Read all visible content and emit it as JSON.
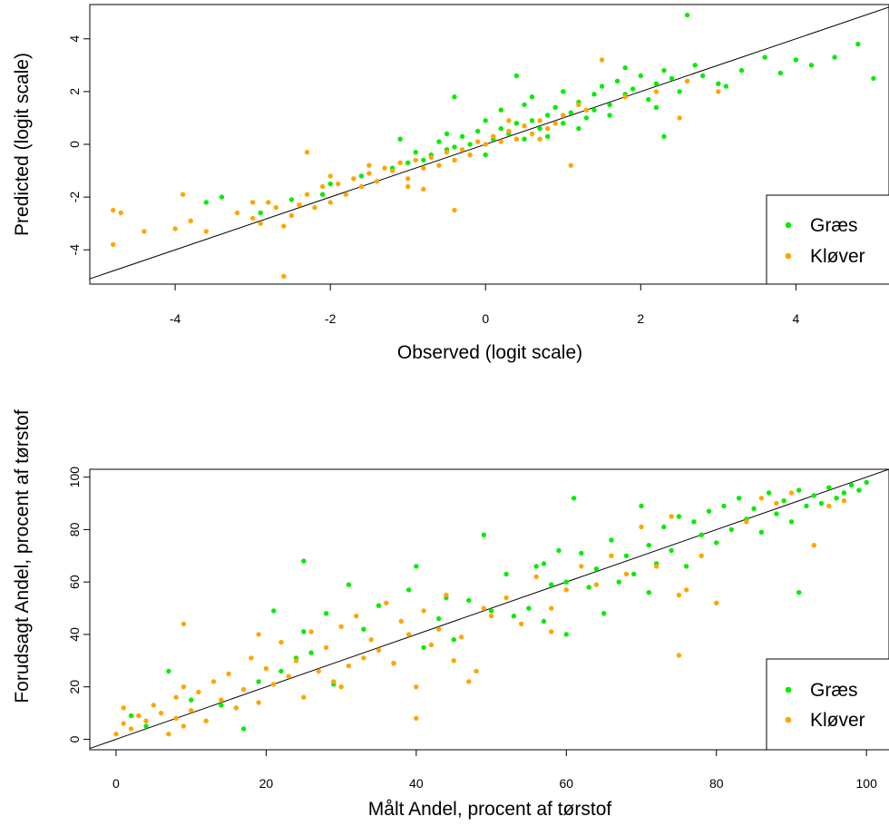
{
  "chart_data": [
    {
      "type": "scatter",
      "xlabel": "Observed (logit scale)",
      "ylabel": "Predicted (logit scale)",
      "xlim": [
        -5.1,
        5.2
      ],
      "ylim": [
        -5.3,
        5.3
      ],
      "xticks": [
        -4,
        -2,
        0,
        2,
        4
      ],
      "yticks": [
        -4,
        -2,
        0,
        2,
        4
      ],
      "xtick_labels": [
        "-4",
        "-2",
        "0",
        "2",
        "4"
      ],
      "ytick_labels": [
        "-4",
        "-2",
        "0",
        "2",
        "4"
      ],
      "reference_line": "y = x",
      "legend": {
        "position": "bottom-right",
        "entries": [
          "Græs",
          "Kløver"
        ]
      },
      "grid": false,
      "series": [
        {
          "name": "Græs",
          "color": "#00ee00",
          "x": [
            -3.6,
            -3.4,
            -2.9,
            -2.5,
            -2.1,
            -2.0,
            -1.6,
            -1.2,
            -1.1,
            -1.0,
            -0.9,
            -0.8,
            -0.7,
            -0.6,
            -0.5,
            -0.5,
            -0.4,
            -0.3,
            -0.2,
            -0.1,
            0.0,
            0.0,
            0.1,
            0.2,
            0.2,
            0.3,
            0.4,
            0.5,
            0.5,
            0.6,
            0.6,
            0.7,
            0.8,
            0.8,
            0.9,
            1.0,
            1.0,
            1.1,
            1.2,
            1.2,
            1.3,
            1.4,
            1.4,
            1.5,
            1.6,
            1.6,
            1.7,
            1.8,
            1.9,
            2.0,
            2.1,
            2.2,
            2.3,
            2.3,
            2.4,
            2.5,
            2.6,
            2.7,
            2.8,
            3.0,
            3.1,
            3.3,
            3.6,
            3.8,
            4.0,
            4.2,
            4.5,
            4.8,
            5.0,
            2.2,
            1.8,
            0.4,
            -0.4
          ],
          "y": [
            -2.2,
            -2.0,
            -2.6,
            -2.1,
            -1.9,
            -1.5,
            -1.2,
            -0.9,
            0.2,
            -0.7,
            -0.3,
            -0.6,
            -0.4,
            0.1,
            -0.2,
            0.4,
            -0.1,
            0.3,
            0.0,
            0.5,
            0.9,
            -0.4,
            0.2,
            0.6,
            1.3,
            0.4,
            0.8,
            0.2,
            1.5,
            0.9,
            1.8,
            0.6,
            1.1,
            0.3,
            1.4,
            0.8,
            2.0,
            1.2,
            0.6,
            1.6,
            1.0,
            1.9,
            1.3,
            2.2,
            1.5,
            1.1,
            2.4,
            1.9,
            2.1,
            2.6,
            1.7,
            2.3,
            2.8,
            0.3,
            2.5,
            2.0,
            4.9,
            3.0,
            2.6,
            2.3,
            2.2,
            2.8,
            3.3,
            2.7,
            3.2,
            3.0,
            3.3,
            3.8,
            2.5,
            1.4,
            2.9,
            2.6,
            1.8
          ]
        },
        {
          "name": "Kløver",
          "color": "#ffa500",
          "x": [
            -4.8,
            -4.7,
            -4.8,
            -4.4,
            -4.0,
            -3.9,
            -3.8,
            -3.6,
            -3.2,
            -3.0,
            -2.9,
            -2.7,
            -2.6,
            -2.5,
            -2.4,
            -2.3,
            -2.2,
            -2.1,
            -2.0,
            -1.9,
            -1.8,
            -1.7,
            -1.6,
            -1.5,
            -1.4,
            -1.3,
            -1.2,
            -1.1,
            -1.0,
            -0.9,
            -0.8,
            -0.7,
            -0.6,
            -0.5,
            -0.4,
            -0.3,
            -0.2,
            -0.1,
            0.0,
            0.1,
            0.2,
            0.3,
            0.4,
            0.5,
            0.6,
            0.7,
            0.8,
            0.9,
            1.0,
            1.1,
            1.3,
            1.5,
            1.8,
            2.2,
            2.5,
            2.6,
            3.0,
            -2.6,
            -2.3,
            -1.0,
            -0.4,
            -3.0,
            -2.8,
            -2.0,
            -1.5,
            -0.8,
            0.3,
            0.7,
            1.2
          ],
          "y": [
            -2.5,
            -2.6,
            -3.8,
            -3.3,
            -3.2,
            -1.9,
            -2.9,
            -3.3,
            -2.6,
            -2.2,
            -3.0,
            -2.4,
            -3.1,
            -2.7,
            -2.3,
            -1.9,
            -2.4,
            -1.6,
            -2.2,
            -1.5,
            -1.9,
            -1.3,
            -1.6,
            -1.1,
            -1.4,
            -0.9,
            -1.0,
            -0.7,
            -1.3,
            -0.6,
            -0.9,
            -0.5,
            -0.8,
            -0.3,
            -0.6,
            -0.2,
            -0.4,
            0.1,
            0.0,
            0.3,
            0.1,
            0.5,
            0.2,
            0.7,
            0.4,
            0.9,
            0.6,
            0.8,
            1.1,
            -0.8,
            1.3,
            3.2,
            1.8,
            2.0,
            1.0,
            2.4,
            2.0,
            -5.0,
            -0.3,
            -1.6,
            -2.5,
            -2.8,
            -2.2,
            -1.2,
            -0.8,
            -1.7,
            0.9,
            0.2,
            1.5
          ]
        }
      ]
    },
    {
      "type": "scatter",
      "xlabel": "Målt Andel, procent af tørstof",
      "ylabel": "Forudsagt Andel, procent af tørstof",
      "xlim": [
        -3.5,
        103
      ],
      "ylim": [
        -4,
        103
      ],
      "xticks": [
        0,
        20,
        40,
        60,
        80,
        100
      ],
      "yticks": [
        0,
        20,
        40,
        60,
        80,
        100
      ],
      "xtick_labels": [
        "0",
        "20",
        "40",
        "60",
        "80",
        "100"
      ],
      "ytick_labels": [
        "0",
        "20",
        "40",
        "60",
        "80",
        "100"
      ],
      "reference_line": "y = x",
      "legend": {
        "position": "bottom-right",
        "entries": [
          "Græs",
          "Kløver"
        ]
      },
      "grid": false,
      "series": [
        {
          "name": "Græs",
          "color": "#00ee00",
          "x": [
            2,
            4,
            7,
            10,
            14,
            17,
            19,
            21,
            22,
            24,
            25,
            26,
            28,
            29,
            31,
            33,
            35,
            37,
            39,
            40,
            41,
            43,
            44,
            45,
            47,
            49,
            50,
            52,
            53,
            55,
            56,
            57,
            58,
            59,
            60,
            61,
            62,
            63,
            64,
            65,
            66,
            67,
            68,
            69,
            70,
            71,
            72,
            73,
            74,
            75,
            76,
            77,
            78,
            79,
            80,
            81,
            82,
            83,
            84,
            85,
            86,
            87,
            88,
            89,
            90,
            91,
            92,
            93,
            94,
            95,
            96,
            97,
            98,
            99,
            100,
            60,
            91,
            25,
            57,
            71
          ],
          "y": [
            9,
            5,
            26,
            15,
            13,
            4,
            22,
            49,
            26,
            31,
            68,
            33,
            48,
            21,
            59,
            42,
            51,
            29,
            57,
            66,
            35,
            46,
            54,
            38,
            53,
            78,
            49,
            63,
            47,
            50,
            66,
            45,
            59,
            72,
            60,
            92,
            71,
            58,
            65,
            48,
            76,
            60,
            70,
            63,
            89,
            74,
            67,
            81,
            72,
            85,
            66,
            83,
            78,
            87,
            75,
            89,
            80,
            92,
            84,
            88,
            79,
            94,
            86,
            91,
            83,
            95,
            89,
            93,
            90,
            96,
            92,
            94,
            97,
            95,
            98,
            40,
            56,
            41,
            67,
            56
          ]
        },
        {
          "name": "Kløver",
          "color": "#ffa500",
          "x": [
            0,
            1,
            1,
            2,
            3,
            4,
            5,
            6,
            7,
            8,
            8,
            9,
            9,
            10,
            11,
            12,
            13,
            14,
            15,
            16,
            17,
            18,
            19,
            20,
            21,
            22,
            23,
            24,
            25,
            26,
            27,
            28,
            29,
            30,
            31,
            32,
            33,
            34,
            35,
            36,
            37,
            38,
            39,
            40,
            41,
            42,
            43,
            44,
            45,
            46,
            48,
            49,
            50,
            52,
            54,
            56,
            58,
            60,
            62,
            64,
            66,
            68,
            70,
            72,
            74,
            75,
            76,
            78,
            80,
            84,
            86,
            88,
            90,
            93,
            95,
            97,
            9,
            40,
            47,
            75,
            58,
            19,
            30
          ],
          "y": [
            2,
            6,
            12,
            4,
            9,
            7,
            13,
            10,
            2,
            16,
            8,
            44,
            20,
            11,
            18,
            7,
            22,
            15,
            25,
            12,
            19,
            31,
            14,
            27,
            21,
            37,
            24,
            30,
            16,
            41,
            26,
            35,
            22,
            43,
            28,
            47,
            31,
            38,
            34,
            52,
            29,
            45,
            40,
            8,
            49,
            36,
            42,
            55,
            30,
            39,
            26,
            50,
            47,
            54,
            44,
            62,
            50,
            57,
            66,
            59,
            70,
            63,
            81,
            66,
            85,
            32,
            57,
            70,
            52,
            83,
            92,
            90,
            94,
            74,
            89,
            91,
            5,
            20,
            22,
            55,
            41,
            40,
            20
          ]
        }
      ]
    }
  ]
}
